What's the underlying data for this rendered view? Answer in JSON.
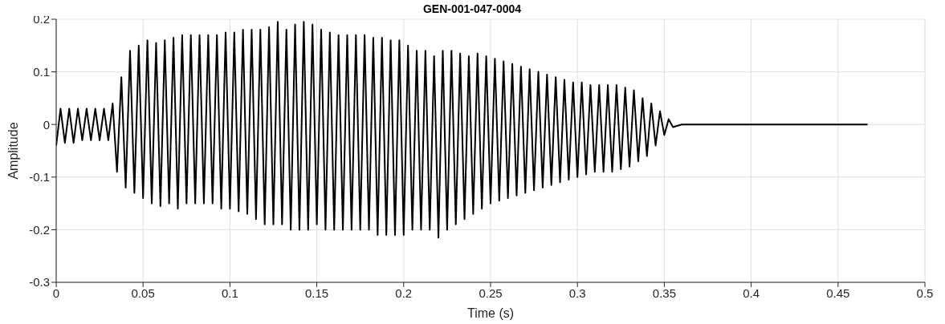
{
  "chart_data": {
    "type": "line",
    "title": "GEN-001-047-0004",
    "xlabel": "Time (s)",
    "ylabel": "Amplitude",
    "x": [
      0,
      0.0025,
      0.005,
      0.0075,
      0.01,
      0.0125,
      0.015,
      0.0175,
      0.02,
      0.0225,
      0.025,
      0.0275,
      0.03,
      0.0325,
      0.035,
      0.0375,
      0.04,
      0.0425,
      0.045,
      0.0475,
      0.05,
      0.0525,
      0.055,
      0.0575,
      0.06,
      0.0625,
      0.065,
      0.0675,
      0.07,
      0.0725,
      0.075,
      0.0775,
      0.08,
      0.0825,
      0.085,
      0.0875,
      0.09,
      0.0925,
      0.095,
      0.0975,
      0.1,
      0.1025,
      0.105,
      0.1075,
      0.11,
      0.1125,
      0.115,
      0.1175,
      0.12,
      0.1225,
      0.125,
      0.1275,
      0.13,
      0.1325,
      0.135,
      0.1375,
      0.14,
      0.1425,
      0.145,
      0.1475,
      0.15,
      0.1525,
      0.155,
      0.1575,
      0.16,
      0.1625,
      0.165,
      0.1675,
      0.17,
      0.1725,
      0.175,
      0.1775,
      0.18,
      0.1825,
      0.185,
      0.1875,
      0.19,
      0.1925,
      0.195,
      0.1975,
      0.2,
      0.2025,
      0.205,
      0.2075,
      0.21,
      0.2125,
      0.215,
      0.2175,
      0.22,
      0.2225,
      0.225,
      0.2275,
      0.23,
      0.2325,
      0.235,
      0.2375,
      0.24,
      0.2425,
      0.245,
      0.2475,
      0.25,
      0.2525,
      0.255,
      0.2575,
      0.26,
      0.2625,
      0.265,
      0.2675,
      0.27,
      0.2725,
      0.275,
      0.2775,
      0.28,
      0.2825,
      0.285,
      0.2875,
      0.29,
      0.2925,
      0.295,
      0.2975,
      0.3,
      0.3025,
      0.305,
      0.3075,
      0.31,
      0.3125,
      0.315,
      0.3175,
      0.32,
      0.3225,
      0.325,
      0.3275,
      0.33,
      0.3325,
      0.335,
      0.3375,
      0.34,
      0.3425,
      0.345,
      0.3475,
      0.35,
      0.3525,
      0.355,
      0.36,
      0.4,
      0.45,
      0.467
    ],
    "series": [
      {
        "color": "#000000",
        "values": [
          -0.04,
          0.03,
          -0.035,
          0.03,
          -0.035,
          0.03,
          -0.03,
          0.03,
          -0.03,
          0.03,
          -0.03,
          0.03,
          -0.03,
          0.04,
          -0.09,
          0.09,
          -0.12,
          0.14,
          -0.13,
          0.15,
          -0.14,
          0.16,
          -0.15,
          0.155,
          -0.155,
          0.16,
          -0.15,
          0.165,
          -0.16,
          0.17,
          -0.15,
          0.17,
          -0.15,
          0.17,
          -0.15,
          0.17,
          -0.15,
          0.17,
          -0.16,
          0.175,
          -0.16,
          0.175,
          -0.165,
          0.18,
          -0.17,
          0.18,
          -0.18,
          0.18,
          -0.19,
          0.185,
          -0.19,
          0.195,
          -0.19,
          0.18,
          -0.2,
          0.19,
          -0.2,
          0.195,
          -0.2,
          0.19,
          -0.19,
          0.18,
          -0.2,
          0.175,
          -0.2,
          0.17,
          -0.2,
          0.17,
          -0.2,
          0.17,
          -0.2,
          0.17,
          -0.2,
          0.165,
          -0.21,
          0.165,
          -0.21,
          0.16,
          -0.21,
          0.16,
          -0.21,
          0.15,
          -0.2,
          0.14,
          -0.2,
          0.14,
          -0.2,
          0.13,
          -0.215,
          0.14,
          -0.2,
          0.14,
          -0.19,
          0.135,
          -0.18,
          0.13,
          -0.17,
          0.135,
          -0.16,
          0.13,
          -0.15,
          0.125,
          -0.145,
          0.12,
          -0.14,
          0.115,
          -0.135,
          0.11,
          -0.13,
          0.105,
          -0.125,
          0.1,
          -0.12,
          0.095,
          -0.115,
          0.09,
          -0.11,
          0.085,
          -0.105,
          0.08,
          -0.1,
          0.08,
          -0.095,
          0.075,
          -0.09,
          0.075,
          -0.09,
          0.075,
          -0.09,
          0.075,
          -0.085,
          0.07,
          -0.08,
          0.065,
          -0.07,
          0.05,
          -0.06,
          0.04,
          -0.04,
          0.025,
          -0.02,
          0.01,
          -0.005,
          0,
          0,
          0,
          0
        ]
      }
    ],
    "xlim": [
      0,
      0.5
    ],
    "xticks": [
      0,
      0.05,
      0.1,
      0.15,
      0.2,
      0.25,
      0.3,
      0.35,
      0.4,
      0.45,
      0.5
    ],
    "ylim": [
      -0.3,
      0.2
    ],
    "yticks": [
      -0.3,
      -0.2,
      -0.1,
      0,
      0.1,
      0.2
    ],
    "grid": true,
    "legend": false,
    "marker": "none",
    "line_style": "solid"
  }
}
